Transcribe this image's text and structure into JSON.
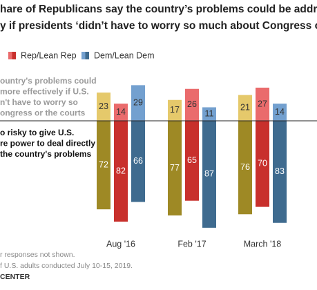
{
  "chart_data": {
    "type": "diverging_bar",
    "title_lines": [
      "hare of Republicans say the country’s problems could be addres",
      "y if presidents ‘didn’t have to worry so much about Congress or t"
    ],
    "categories": [
      "Aug '16",
      "Feb '17",
      "March '18"
    ],
    "series": [
      {
        "colors": [
          "#e5c96b",
          "#9e8925"
        ],
        "values_above": [
          23,
          17,
          21
        ],
        "values_below": [
          72,
          77,
          76
        ]
      },
      {
        "name": "Rep/Lean Rep",
        "colors": [
          "#ea6b6c",
          "#c8302c"
        ],
        "values_above": [
          14,
          26,
          27
        ],
        "values_below": [
          82,
          65,
          70
        ]
      },
      {
        "name": "Dem/Lean Dem",
        "colors": [
          "#73a0cf",
          "#3f6b8f"
        ],
        "values_above": [
          29,
          11,
          14
        ],
        "values_below": [
          66,
          87,
          83
        ]
      }
    ],
    "annotation_above": [
      "ountry's problems could",
      "more effectively if U.S.",
      "n't have to worry so",
      "ongress or the courts"
    ],
    "annotation_below": [
      "o risky to give U.S.",
      "re power to deal directly",
      "the country's problems"
    ],
    "notes": [
      "r responses not shown.",
      "f U.S. adults conducted July 10-15, 2019."
    ],
    "source": "CENTER"
  }
}
